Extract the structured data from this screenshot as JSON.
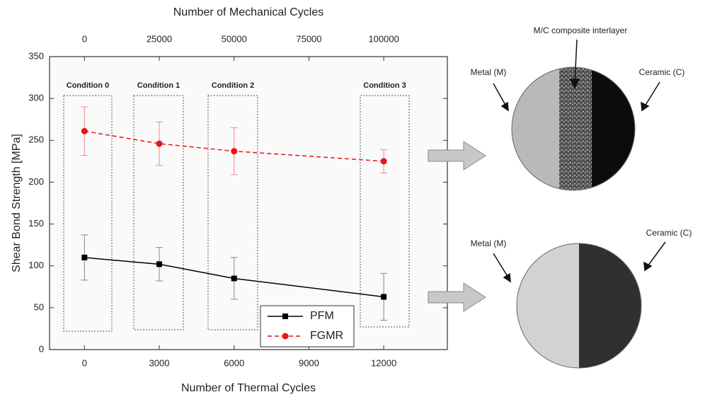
{
  "chart_data": {
    "type": "line",
    "xlabel": "Number of Thermal Cycles",
    "x2label": "Number of Mechanical Cycles",
    "ylabel": "Shear Bond Strength [MPa]",
    "x": [
      0,
      3000,
      6000,
      12000
    ],
    "xlim": [
      -1400,
      14550
    ],
    "xticks": [
      0,
      3000,
      6000,
      9000,
      12000
    ],
    "x2lim": [
      -11667,
      121250
    ],
    "x2ticks": [
      0,
      25000,
      50000,
      75000,
      100000
    ],
    "ylim": [
      0,
      350
    ],
    "yticks": [
      0,
      50,
      100,
      150,
      200,
      250,
      300,
      350
    ],
    "series": [
      {
        "name": "PFM",
        "color": "#000000",
        "marker": "square",
        "dash": false,
        "values": [
          110,
          102,
          85,
          63
        ],
        "errors": [
          27,
          20,
          25,
          28
        ]
      },
      {
        "name": "FGMR",
        "color": "#e8141a",
        "marker": "circle",
        "dash": true,
        "values": [
          261,
          246,
          237,
          225
        ],
        "errors": [
          29,
          26,
          28,
          14
        ]
      }
    ],
    "conditions": [
      "Condition 0",
      "Condition 1",
      "Condition 2",
      "Condition 3"
    ],
    "image_labels": [
      "M/C composite interlayer",
      "Metal (M)",
      "Ceramic (C)",
      "Metal (M)",
      "Ceramic (C)"
    ]
  }
}
